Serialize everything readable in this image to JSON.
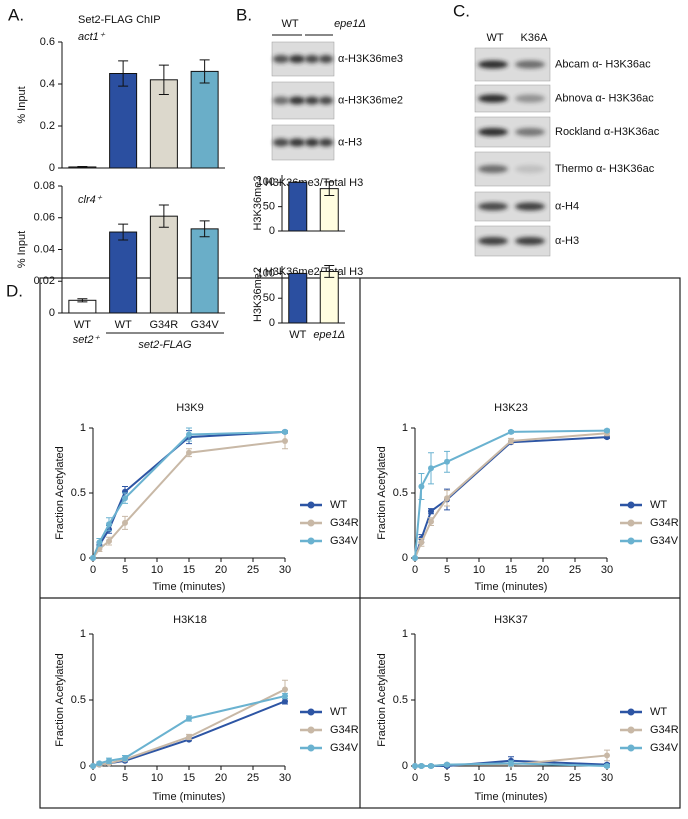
{
  "panels": {
    "a": "A.",
    "b": "B.",
    "c": "C.",
    "d": "D."
  },
  "panel_a": {
    "title": "Set2-FLAG ChIP",
    "genotype_left": "set2⁺",
    "genotype_right": "set2-FLAG"
  },
  "blot_b": {
    "lanes": [
      "WT",
      "epe1Δ"
    ],
    "antibodies": [
      "α-H3K36me3",
      "α-H3K36me2",
      "α-H3"
    ]
  },
  "blot_c": {
    "lanes": [
      "WT",
      "K36A"
    ],
    "antibodies": [
      "Abcam α- H3K36ac",
      "Abnova α- H3K36ac",
      "Rockland α-H3K36ac",
      "Thermo α- H3K36ac",
      "α-H4",
      "α-H3"
    ]
  },
  "chart_data": [
    {
      "type": "bar",
      "title": "act1⁺",
      "ylabel": "% Input",
      "categories": [
        null,
        null,
        null,
        null
      ],
      "values": [
        0.005,
        0.45,
        0.42,
        0.46
      ],
      "errors": [
        0.002,
        0.06,
        0.07,
        0.055
      ],
      "colors": [
        "#ffffff",
        "#2b4fa0",
        "#dcd8cc",
        "#6aaec8"
      ],
      "ylim": [
        0,
        0.6
      ],
      "yticks": [
        0,
        0.2,
        0.4,
        0.6
      ]
    },
    {
      "type": "bar",
      "title": "clr4⁺",
      "ylabel": "% Input",
      "categories": [
        "WT",
        "WT",
        "G34R",
        "G34V"
      ],
      "values": [
        0.008,
        0.051,
        0.061,
        0.053
      ],
      "errors": [
        0.001,
        0.005,
        0.007,
        0.005
      ],
      "colors": [
        "#ffffff",
        "#2b4fa0",
        "#dcd8cc",
        "#6aaec8"
      ],
      "ylim": [
        0,
        0.08
      ],
      "yticks": [
        0,
        0.02,
        0.04,
        0.06,
        0.08
      ]
    },
    {
      "type": "bar",
      "title": "H3K36me3/Total H3",
      "ylabel": "H3K36me3",
      "categories": [
        null,
        null
      ],
      "values": [
        100,
        87
      ],
      "errors": [
        0,
        14
      ],
      "colors": [
        "#2b4fa0",
        "#fffde0"
      ],
      "ylim": [
        0,
        115
      ],
      "yticks": [
        0,
        50,
        100
      ]
    },
    {
      "type": "bar",
      "title": "H3K36me2/Total H3",
      "ylabel": "H3K36me2",
      "categories": [
        "WT",
        "epe1Δ"
      ],
      "values": [
        100,
        104
      ],
      "errors": [
        0,
        12
      ],
      "colors": [
        "#2b4fa0",
        "#fffde0"
      ],
      "ylim": [
        0,
        115
      ],
      "yticks": [
        0,
        50,
        100
      ]
    },
    {
      "type": "line",
      "title": "H3K9",
      "xlabel": "Time (minutes)",
      "ylabel": "Fraction Acetylated",
      "x": [
        0,
        1,
        2.5,
        5,
        15,
        30
      ],
      "xlim": [
        0,
        30
      ],
      "xticks": [
        0,
        5,
        10,
        15,
        20,
        25,
        30
      ],
      "ylim": [
        0,
        1
      ],
      "yticks": [
        0,
        0.5,
        1
      ],
      "legend": "right",
      "series": [
        {
          "name": "WT",
          "color": "#2d55a4",
          "values": [
            0,
            0.1,
            0.22,
            0.51,
            0.93,
            0.97
          ],
          "errors": [
            0,
            0.02,
            0.03,
            0.04,
            0.05,
            0.01
          ]
        },
        {
          "name": "G34R",
          "color": "#c8b8a6",
          "values": [
            0,
            0.07,
            0.13,
            0.27,
            0.81,
            0.9
          ],
          "errors": [
            0,
            0.02,
            0.03,
            0.05,
            0.03,
            0.06
          ]
        },
        {
          "name": "G34V",
          "color": "#6ab2d0",
          "values": [
            0,
            0.12,
            0.26,
            0.46,
            0.95,
            0.97
          ],
          "errors": [
            0,
            0.03,
            0.05,
            0.04,
            0.05,
            0.01
          ]
        }
      ]
    },
    {
      "type": "line",
      "title": "H3K23",
      "xlabel": "Time (minutes)",
      "ylabel": "Fraction Acetylated",
      "x": [
        0,
        1,
        2.5,
        5,
        15,
        30
      ],
      "xlim": [
        0,
        30
      ],
      "xticks": [
        0,
        5,
        10,
        15,
        20,
        25,
        30
      ],
      "ylim": [
        0,
        1
      ],
      "yticks": [
        0,
        0.5,
        1
      ],
      "legend": "right",
      "series": [
        {
          "name": "WT",
          "color": "#2d55a4",
          "values": [
            0,
            0.15,
            0.36,
            0.45,
            0.89,
            0.93
          ],
          "errors": [
            0,
            0.03,
            0.02,
            0.08,
            0.01,
            0.01
          ]
        },
        {
          "name": "G34R",
          "color": "#c8b8a6",
          "values": [
            0,
            0.12,
            0.28,
            0.46,
            0.9,
            0.96
          ],
          "errors": [
            0,
            0.03,
            0.03,
            0.06,
            0.02,
            0.02
          ]
        },
        {
          "name": "G34V",
          "color": "#6ab2d0",
          "values": [
            0,
            0.55,
            0.69,
            0.74,
            0.97,
            0.98
          ],
          "errors": [
            0,
            0.1,
            0.12,
            0.08,
            0.01,
            0.01
          ]
        }
      ]
    },
    {
      "type": "line",
      "title": "H3K18",
      "xlabel": "Time (minutes)",
      "ylabel": "Fraction Acetylated",
      "x": [
        0,
        1,
        2.5,
        5,
        15,
        30
      ],
      "xlim": [
        0,
        30
      ],
      "xticks": [
        0,
        5,
        10,
        15,
        20,
        25,
        30
      ],
      "ylim": [
        0,
        1
      ],
      "yticks": [
        0,
        0.5,
        1
      ],
      "legend": "right",
      "series": [
        {
          "name": "WT",
          "color": "#2d55a4",
          "values": [
            0,
            0.01,
            0.02,
            0.04,
            0.2,
            0.49
          ],
          "errors": [
            0,
            0.01,
            0.01,
            0.01,
            0.01,
            0.02
          ]
        },
        {
          "name": "G34R",
          "color": "#c8b8a6",
          "values": [
            0,
            0.01,
            0.02,
            0.05,
            0.22,
            0.58
          ],
          "errors": [
            0,
            0.01,
            0.01,
            0.01,
            0.02,
            0.07
          ]
        },
        {
          "name": "G34V",
          "color": "#6ab2d0",
          "values": [
            0,
            0.02,
            0.04,
            0.06,
            0.36,
            0.53
          ],
          "errors": [
            0,
            0.01,
            0.02,
            0.02,
            0.02,
            0.02
          ]
        }
      ]
    },
    {
      "type": "line",
      "title": "H3K37",
      "xlabel": "Time (minutes)",
      "ylabel": "Fraction Acetylated",
      "x": [
        0,
        1,
        2.5,
        5,
        15,
        30
      ],
      "xlim": [
        0,
        30
      ],
      "xticks": [
        0,
        5,
        10,
        15,
        20,
        25,
        30
      ],
      "ylim": [
        0,
        1
      ],
      "yticks": [
        0,
        0.5,
        1
      ],
      "legend": "right",
      "series": [
        {
          "name": "WT",
          "color": "#2d55a4",
          "values": [
            0,
            0,
            0,
            0,
            0.04,
            0.01
          ],
          "errors": [
            0,
            0.01,
            0.01,
            0.01,
            0.03,
            0.01
          ]
        },
        {
          "name": "G34R",
          "color": "#c8b8a6",
          "values": [
            0,
            0,
            0,
            0.01,
            0.01,
            0.08
          ],
          "errors": [
            0,
            0.01,
            0.01,
            0.01,
            0.01,
            0.04
          ]
        },
        {
          "name": "G34V",
          "color": "#6ab2d0",
          "values": [
            0,
            0,
            0,
            0.01,
            0.02,
            0
          ],
          "errors": [
            0,
            0.01,
            0.01,
            0.01,
            0.02,
            0.01
          ]
        }
      ]
    }
  ]
}
